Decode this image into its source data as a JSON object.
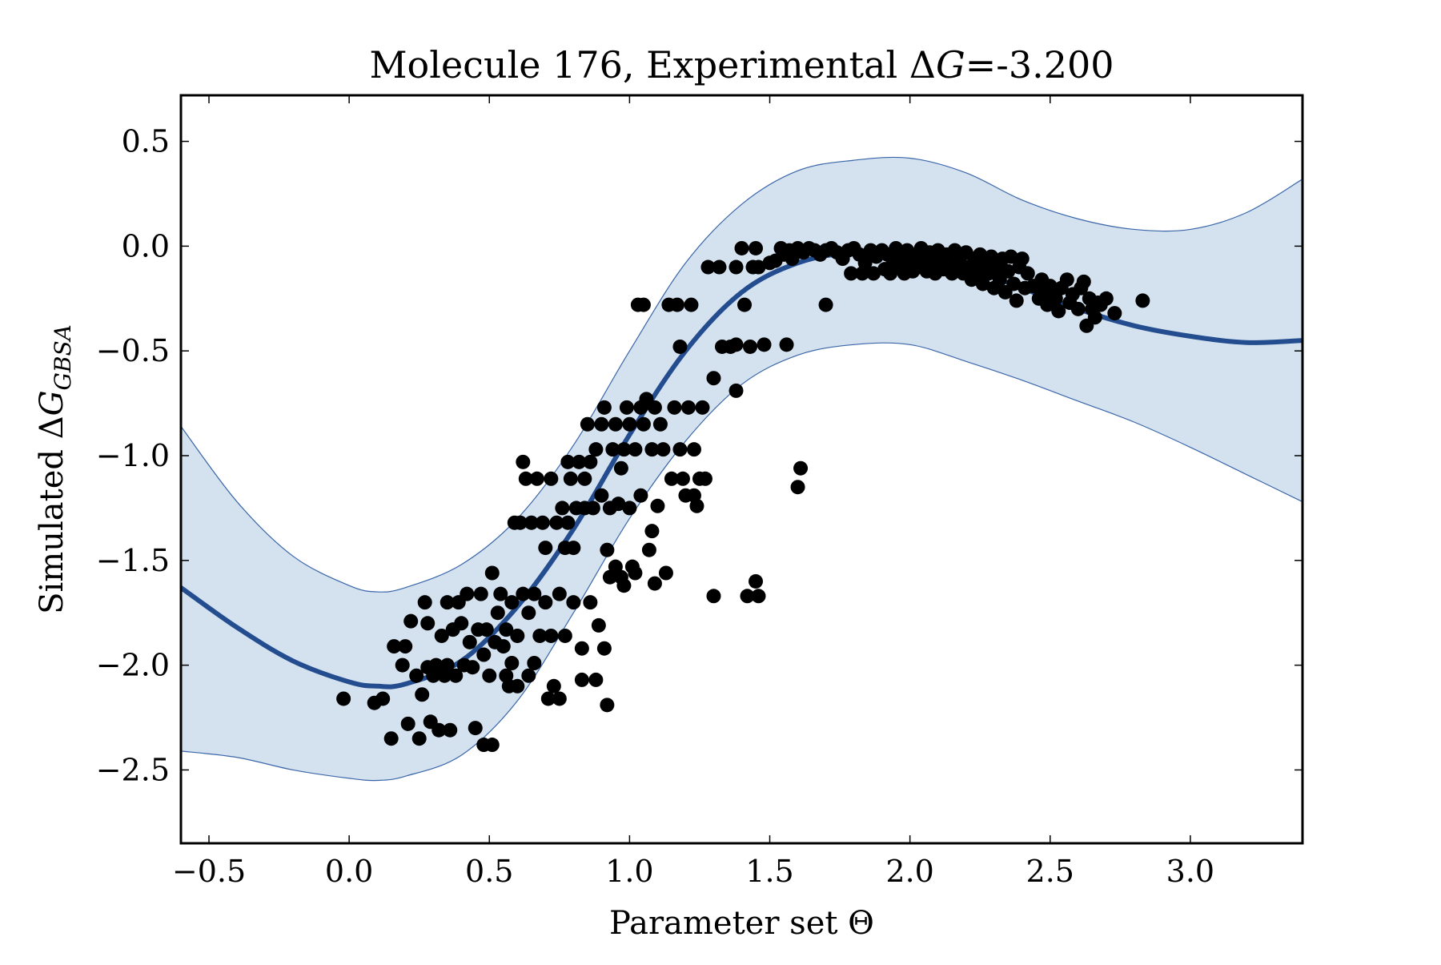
{
  "chart_data": {
    "type": "scatter",
    "title": "Molecule 176, Experimental ΔG=-3.200",
    "title_parts": {
      "prefix": "Molecule 176, Experimental Δ",
      "italic": "G",
      "suffix": "=-3.200"
    },
    "xlabel": "Parameter set Θ",
    "ylabel": "Simulated ΔG",
    "ylabel_parts": {
      "prefix": "Simulated Δ",
      "italic": "G",
      "subscript": "GBSA"
    },
    "xlim": [
      -0.6,
      3.4
    ],
    "ylim": [
      -2.85,
      0.72
    ],
    "xticks": [
      -0.5,
      0.0,
      0.5,
      1.0,
      1.5,
      2.0,
      2.5,
      3.0
    ],
    "xtick_labels": [
      "−0.5",
      "0.0",
      "0.5",
      "1.0",
      "1.5",
      "2.0",
      "2.5",
      "3.0"
    ],
    "yticks": [
      0.5,
      0.0,
      -0.5,
      -1.0,
      -1.5,
      -2.0,
      -2.5
    ],
    "ytick_labels": [
      "0.5",
      "0.0",
      "−0.5",
      "−1.0",
      "−1.5",
      "−2.0",
      "−2.5"
    ],
    "grid": false,
    "colors": {
      "mean_line": "#234d8e",
      "band_fill": "#d4e2f0",
      "band_edge": "#3a66a8",
      "points": "#000000"
    },
    "series": [
      {
        "kind": "mean_line",
        "x": [
          -0.6,
          -0.4,
          -0.2,
          0.0,
          0.1,
          0.2,
          0.4,
          0.6,
          0.8,
          1.0,
          1.2,
          1.4,
          1.6,
          1.8,
          2.0,
          2.2,
          2.4,
          2.6,
          2.8,
          3.0,
          3.2,
          3.4
        ],
        "y": [
          -1.63,
          -1.82,
          -1.98,
          -2.08,
          -2.1,
          -2.09,
          -1.98,
          -1.72,
          -1.35,
          -0.9,
          -0.5,
          -0.22,
          -0.08,
          -0.03,
          -0.04,
          -0.1,
          -0.2,
          -0.3,
          -0.38,
          -0.43,
          -0.46,
          -0.45
        ]
      },
      {
        "kind": "confidence_band",
        "x": [
          -0.6,
          -0.4,
          -0.2,
          0.0,
          0.1,
          0.2,
          0.4,
          0.6,
          0.8,
          1.0,
          1.2,
          1.4,
          1.6,
          1.8,
          2.0,
          2.2,
          2.4,
          2.6,
          2.8,
          3.0,
          3.2,
          3.4
        ],
        "upper": [
          -0.86,
          -1.22,
          -1.48,
          -1.62,
          -1.65,
          -1.63,
          -1.52,
          -1.3,
          -0.95,
          -0.5,
          -0.08,
          0.2,
          0.36,
          0.41,
          0.42,
          0.35,
          0.22,
          0.13,
          0.08,
          0.08,
          0.16,
          0.32
        ],
        "lower": [
          -2.41,
          -2.44,
          -2.5,
          -2.54,
          -2.55,
          -2.53,
          -2.43,
          -2.17,
          -1.75,
          -1.3,
          -0.93,
          -0.66,
          -0.52,
          -0.47,
          -0.47,
          -0.55,
          -0.64,
          -0.74,
          -0.84,
          -0.96,
          -1.09,
          -1.22
        ]
      },
      {
        "kind": "points",
        "points": [
          [
            -0.02,
            -2.16
          ],
          [
            0.09,
            -2.18
          ],
          [
            0.12,
            -2.16
          ],
          [
            0.15,
            -2.35
          ],
          [
            0.16,
            -1.91
          ],
          [
            0.19,
            -2.0
          ],
          [
            0.2,
            -1.91
          ],
          [
            0.21,
            -2.28
          ],
          [
            0.22,
            -1.79
          ],
          [
            0.24,
            -2.05
          ],
          [
            0.25,
            -2.35
          ],
          [
            0.26,
            -2.14
          ],
          [
            0.27,
            -1.7
          ],
          [
            0.28,
            -1.8
          ],
          [
            0.28,
            -2.01
          ],
          [
            0.29,
            -2.27
          ],
          [
            0.3,
            -2.05
          ],
          [
            0.31,
            -2.0
          ],
          [
            0.32,
            -2.31
          ],
          [
            0.33,
            -1.86
          ],
          [
            0.34,
            -2.05
          ],
          [
            0.35,
            -1.7
          ],
          [
            0.35,
            -2.0
          ],
          [
            0.36,
            -2.31
          ],
          [
            0.37,
            -1.83
          ],
          [
            0.38,
            -2.05
          ],
          [
            0.39,
            -1.7
          ],
          [
            0.4,
            -1.8
          ],
          [
            0.41,
            -2.0
          ],
          [
            0.42,
            -1.66
          ],
          [
            0.43,
            -1.89
          ],
          [
            0.44,
            -2.01
          ],
          [
            0.45,
            -2.3
          ],
          [
            0.46,
            -1.83
          ],
          [
            0.47,
            -1.66
          ],
          [
            0.48,
            -1.95
          ],
          [
            0.48,
            -2.38
          ],
          [
            0.49,
            -1.83
          ],
          [
            0.5,
            -2.05
          ],
          [
            0.51,
            -2.38
          ],
          [
            0.51,
            -1.56
          ],
          [
            0.52,
            -1.89
          ],
          [
            0.53,
            -1.75
          ],
          [
            0.54,
            -1.66
          ],
          [
            0.55,
            -1.91
          ],
          [
            0.56,
            -2.05
          ],
          [
            0.56,
            -1.83
          ],
          [
            0.57,
            -2.1
          ],
          [
            0.58,
            -1.7
          ],
          [
            0.58,
            -1.99
          ],
          [
            0.59,
            -1.32
          ],
          [
            0.6,
            -1.86
          ],
          [
            0.6,
            -2.1
          ],
          [
            0.61,
            -1.32
          ],
          [
            0.62,
            -1.66
          ],
          [
            0.62,
            -1.03
          ],
          [
            0.63,
            -1.11
          ],
          [
            0.64,
            -1.75
          ],
          [
            0.64,
            -2.05
          ],
          [
            0.65,
            -1.32
          ],
          [
            0.66,
            -1.99
          ],
          [
            0.66,
            -1.66
          ],
          [
            0.67,
            -1.11
          ],
          [
            0.68,
            -1.86
          ],
          [
            0.69,
            -1.32
          ],
          [
            0.7,
            -1.7
          ],
          [
            0.7,
            -1.44
          ],
          [
            0.71,
            -2.16
          ],
          [
            0.72,
            -1.11
          ],
          [
            0.72,
            -1.86
          ],
          [
            0.73,
            -2.1
          ],
          [
            0.74,
            -1.32
          ],
          [
            0.75,
            -1.66
          ],
          [
            0.75,
            -2.16
          ],
          [
            0.76,
            -1.25
          ],
          [
            0.77,
            -1.44
          ],
          [
            0.77,
            -1.86
          ],
          [
            0.78,
            -1.03
          ],
          [
            0.78,
            -1.32
          ],
          [
            0.79,
            -1.11
          ],
          [
            0.8,
            -1.7
          ],
          [
            0.8,
            -1.44
          ],
          [
            0.81,
            -1.25
          ],
          [
            0.82,
            -1.03
          ],
          [
            0.83,
            -1.92
          ],
          [
            0.83,
            -2.07
          ],
          [
            0.84,
            -1.11
          ],
          [
            0.84,
            -1.25
          ],
          [
            0.85,
            -0.85
          ],
          [
            0.86,
            -1.7
          ],
          [
            0.86,
            -1.03
          ],
          [
            0.87,
            -1.25
          ],
          [
            0.88,
            -0.97
          ],
          [
            0.88,
            -2.07
          ],
          [
            0.89,
            -1.81
          ],
          [
            0.9,
            -0.85
          ],
          [
            0.9,
            -1.19
          ],
          [
            0.91,
            -1.92
          ],
          [
            0.91,
            -0.77
          ],
          [
            0.92,
            -2.19
          ],
          [
            0.92,
            -1.45
          ],
          [
            0.93,
            -1.25
          ],
          [
            0.93,
            -1.58
          ],
          [
            0.94,
            -0.97
          ],
          [
            0.95,
            -0.85
          ],
          [
            0.95,
            -1.53
          ],
          [
            0.96,
            -1.23
          ],
          [
            0.97,
            -1.06
          ],
          [
            0.97,
            -1.58
          ],
          [
            0.98,
            -0.97
          ],
          [
            0.98,
            -1.62
          ],
          [
            0.99,
            -0.77
          ],
          [
            1.0,
            -1.25
          ],
          [
            1.0,
            -0.85
          ],
          [
            1.01,
            -1.53
          ],
          [
            1.02,
            -1.56
          ],
          [
            1.02,
            -0.97
          ],
          [
            1.03,
            -0.28
          ],
          [
            1.04,
            -0.77
          ],
          [
            1.04,
            -1.19
          ],
          [
            1.05,
            -0.85
          ],
          [
            1.05,
            -0.28
          ],
          [
            1.06,
            -0.73
          ],
          [
            1.07,
            -1.45
          ],
          [
            1.08,
            -0.97
          ],
          [
            1.08,
            -1.36
          ],
          [
            1.09,
            -0.77
          ],
          [
            1.09,
            -1.61
          ],
          [
            1.1,
            -1.24
          ],
          [
            1.11,
            -0.85
          ],
          [
            1.12,
            -0.97
          ],
          [
            1.13,
            -1.56
          ],
          [
            1.14,
            -0.28
          ],
          [
            1.15,
            -1.11
          ],
          [
            1.16,
            -0.77
          ],
          [
            1.17,
            -0.28
          ],
          [
            1.18,
            -0.48
          ],
          [
            1.18,
            -0.97
          ],
          [
            1.19,
            -1.11
          ],
          [
            1.2,
            -1.19
          ],
          [
            1.21,
            -0.77
          ],
          [
            1.22,
            -0.28
          ],
          [
            1.23,
            -1.19
          ],
          [
            1.23,
            -0.97
          ],
          [
            1.24,
            -1.24
          ],
          [
            1.25,
            -1.11
          ],
          [
            1.26,
            -0.77
          ],
          [
            1.27,
            -1.11
          ],
          [
            1.28,
            -0.1
          ],
          [
            1.3,
            -0.63
          ],
          [
            1.3,
            -1.67
          ],
          [
            1.32,
            -0.1
          ],
          [
            1.33,
            -0.48
          ],
          [
            1.36,
            -0.48
          ],
          [
            1.38,
            -0.1
          ],
          [
            1.38,
            -0.47
          ],
          [
            1.38,
            -0.69
          ],
          [
            1.4,
            -0.01
          ],
          [
            1.41,
            -0.28
          ],
          [
            1.42,
            -1.67
          ],
          [
            1.43,
            -0.48
          ],
          [
            1.44,
            -0.1
          ],
          [
            1.45,
            -1.6
          ],
          [
            1.45,
            -0.01
          ],
          [
            1.46,
            -0.1
          ],
          [
            1.46,
            -1.67
          ],
          [
            1.48,
            -0.47
          ],
          [
            1.5,
            -0.08
          ],
          [
            1.52,
            -0.07
          ],
          [
            1.54,
            -0.01
          ],
          [
            1.55,
            -0.04
          ],
          [
            1.56,
            -0.47
          ],
          [
            1.57,
            -0.02
          ],
          [
            1.58,
            -0.06
          ],
          [
            1.6,
            -1.15
          ],
          [
            1.61,
            -1.06
          ],
          [
            1.6,
            -0.01
          ],
          [
            1.62,
            -0.03
          ],
          [
            1.64,
            -0.01
          ],
          [
            1.66,
            -0.02
          ],
          [
            1.68,
            -0.04
          ],
          [
            1.7,
            -0.28
          ],
          [
            1.7,
            -0.02
          ],
          [
            1.72,
            -0.01
          ],
          [
            1.74,
            -0.03
          ],
          [
            1.76,
            -0.06
          ],
          [
            1.78,
            -0.02
          ],
          [
            1.79,
            -0.13
          ],
          [
            1.8,
            -0.01
          ],
          [
            1.82,
            -0.04
          ],
          [
            1.83,
            -0.13
          ],
          [
            1.84,
            -0.08
          ],
          [
            1.86,
            -0.02
          ],
          [
            1.87,
            -0.13
          ],
          [
            1.88,
            -0.05
          ],
          [
            1.9,
            -0.02
          ],
          [
            1.91,
            -0.11
          ],
          [
            1.92,
            -0.04
          ],
          [
            1.93,
            -0.13
          ],
          [
            1.94,
            -0.07
          ],
          [
            1.95,
            -0.01
          ],
          [
            1.96,
            -0.1
          ],
          [
            1.97,
            -0.05
          ],
          [
            1.98,
            -0.13
          ],
          [
            1.99,
            -0.02
          ],
          [
            2.0,
            -0.08
          ],
          [
            2.01,
            -0.12
          ],
          [
            2.02,
            -0.04
          ],
          [
            2.03,
            -0.1
          ],
          [
            2.04,
            -0.01
          ],
          [
            2.05,
            -0.06
          ],
          [
            2.06,
            -0.12
          ],
          [
            2.07,
            -0.03
          ],
          [
            2.08,
            -0.08
          ],
          [
            2.09,
            -0.13
          ],
          [
            2.1,
            -0.02
          ],
          [
            2.11,
            -0.07
          ],
          [
            2.12,
            -0.11
          ],
          [
            2.13,
            -0.04
          ],
          [
            2.14,
            -0.09
          ],
          [
            2.15,
            -0.13
          ],
          [
            2.16,
            -0.02
          ],
          [
            2.17,
            -0.08
          ],
          [
            2.18,
            -0.05
          ],
          [
            2.19,
            -0.13
          ],
          [
            2.2,
            -0.03
          ],
          [
            2.21,
            -0.1
          ],
          [
            2.22,
            -0.16
          ],
          [
            2.23,
            -0.06
          ],
          [
            2.24,
            -0.12
          ],
          [
            2.25,
            -0.04
          ],
          [
            2.26,
            -0.18
          ],
          [
            2.27,
            -0.08
          ],
          [
            2.28,
            -0.13
          ],
          [
            2.29,
            -0.05
          ],
          [
            2.3,
            -0.2
          ],
          [
            2.31,
            -0.1
          ],
          [
            2.32,
            -0.16
          ],
          [
            2.33,
            -0.06
          ],
          [
            2.34,
            -0.22
          ],
          [
            2.35,
            -0.12
          ],
          [
            2.36,
            -0.05
          ],
          [
            2.37,
            -0.18
          ],
          [
            2.38,
            -0.26
          ],
          [
            2.39,
            -0.1
          ],
          [
            2.4,
            -0.06
          ],
          [
            2.41,
            -0.2
          ],
          [
            2.42,
            -0.13
          ],
          [
            2.44,
            -0.19
          ],
          [
            2.46,
            -0.25
          ],
          [
            2.47,
            -0.16
          ],
          [
            2.48,
            -0.22
          ],
          [
            2.49,
            -0.28
          ],
          [
            2.5,
            -0.19
          ],
          [
            2.52,
            -0.25
          ],
          [
            2.53,
            -0.31
          ],
          [
            2.54,
            -0.2
          ],
          [
            2.56,
            -0.16
          ],
          [
            2.57,
            -0.27
          ],
          [
            2.58,
            -0.23
          ],
          [
            2.6,
            -0.3
          ],
          [
            2.61,
            -0.2
          ],
          [
            2.62,
            -0.17
          ],
          [
            2.63,
            -0.38
          ],
          [
            2.64,
            -0.25
          ],
          [
            2.65,
            -0.3
          ],
          [
            2.66,
            -0.34
          ],
          [
            2.67,
            -0.27
          ],
          [
            2.68,
            -0.28
          ],
          [
            2.7,
            -0.25
          ],
          [
            2.73,
            -0.32
          ],
          [
            2.83,
            -0.26
          ]
        ]
      }
    ]
  }
}
